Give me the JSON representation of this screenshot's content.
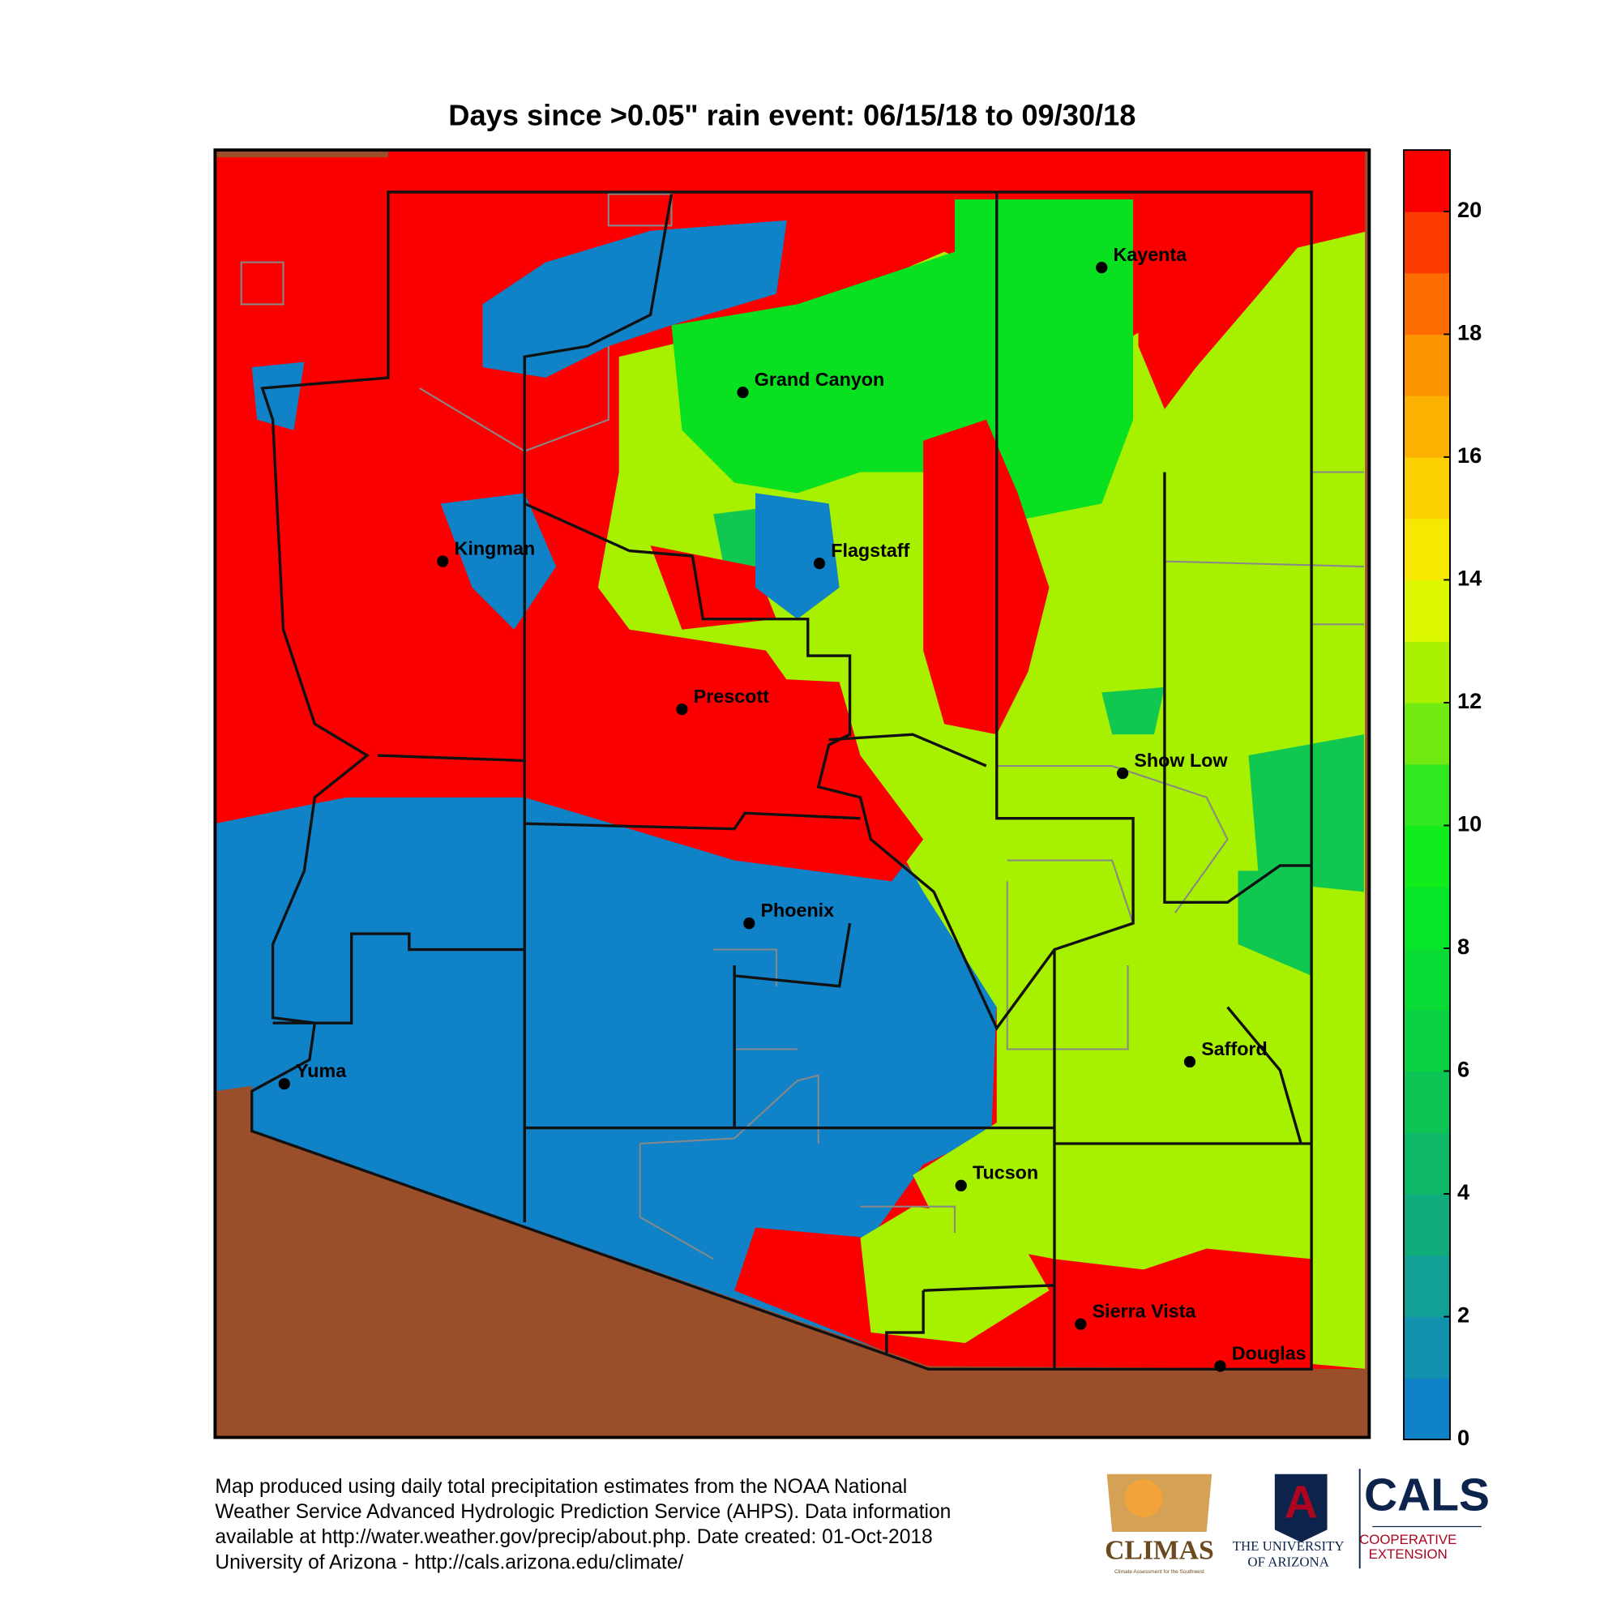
{
  "title": "Days since >0.05\" rain event: 06/15/18 to 09/30/18",
  "cities": [
    "Kayenta",
    "Grand Canyon",
    "Kingman",
    "Flagstaff",
    "Prescott",
    "Show Low",
    "Phoenix",
    "Yuma",
    "Safford",
    "Tucson",
    "Sierra Vista",
    "Douglas"
  ],
  "colorbar": {
    "range": [
      0,
      21
    ],
    "ticks": [
      0,
      2,
      4,
      6,
      8,
      10,
      12,
      14,
      16,
      18,
      20
    ],
    "colors": [
      "#0f82c8",
      "#1392b0",
      "#12a096",
      "#10ac7c",
      "#0eb866",
      "#0cc454",
      "#0ad044",
      "#08dc34",
      "#06e628",
      "#10ec1c",
      "#30e820",
      "#70ea10",
      "#a6f000",
      "#dcf800",
      "#f6e800",
      "#fcd000",
      "#fcb000",
      "#fc9400",
      "#fc6c00",
      "#fc3c00",
      "#fa0000"
    ]
  },
  "footer": [
    "Map produced using daily total precipitation estimates from the NOAA National",
    "Weather Service Advanced Hydrologic Prediction Service (AHPS). Data information",
    "available at http://water.weather.gov/precip/about.php. Date created: 01-Oct-2018",
    "University of Arizona - http://cals.arizona.edu/climate/"
  ],
  "logos": {
    "climas": "CLIMAS",
    "climas_tagline": "Climate Assessment for the Southwest",
    "ua_letter": "A",
    "ua_line1": "THE UNIVERSITY",
    "ua_line2": "OF ARIZONA",
    "cals": "CALS",
    "cals_line1": "COOPERATIVE",
    "cals_line2": "EXTENSION"
  }
}
